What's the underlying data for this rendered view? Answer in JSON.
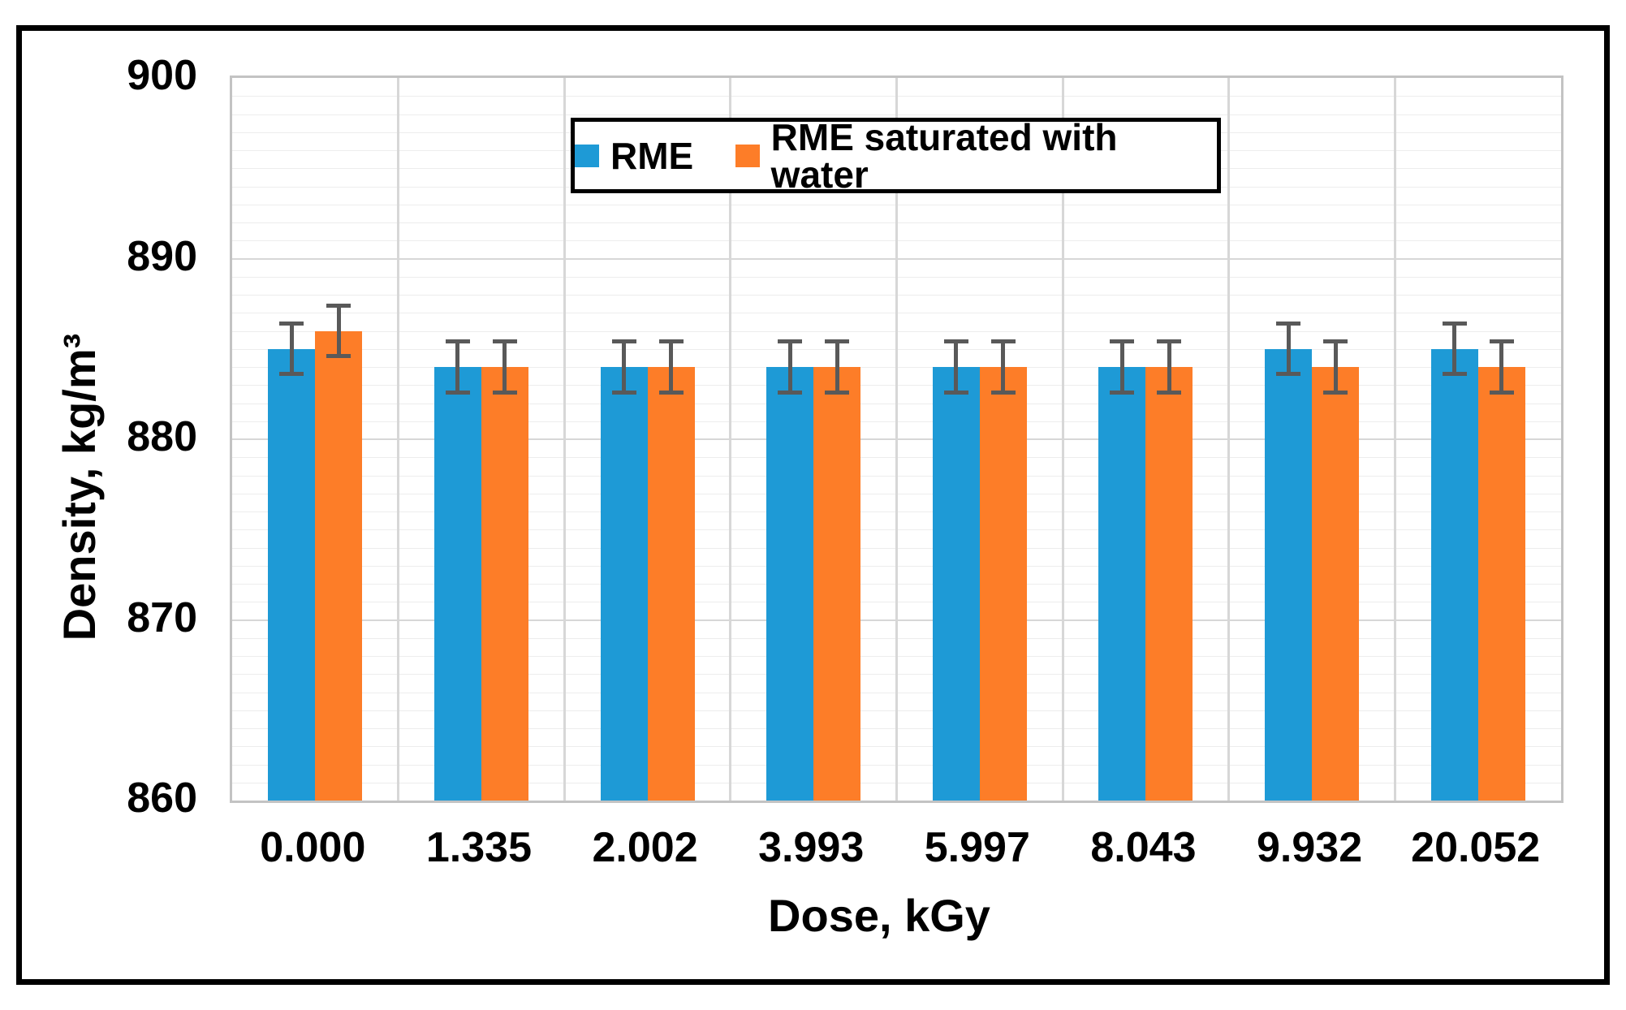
{
  "figure": {
    "background_color": "#ffffff",
    "outer_border_color": "#000000"
  },
  "chart_data": {
    "type": "bar",
    "title": "",
    "xlabel": "Dose, kGy",
    "ylabel": "Density, kg/m³",
    "categories": [
      "0.000",
      "1.335",
      "2.002",
      "3.993",
      "5.997",
      "8.043",
      "9.932",
      "20.052"
    ],
    "series": [
      {
        "name": "RME",
        "color": "#1e9ad6",
        "values": [
          885,
          884,
          884,
          884,
          884,
          884,
          885,
          885
        ],
        "errors": [
          1.4,
          1.4,
          1.4,
          1.4,
          1.4,
          1.4,
          1.4,
          1.4
        ]
      },
      {
        "name": "RME saturated with water",
        "color": "#fd7d28",
        "values": [
          886,
          884,
          884,
          884,
          884,
          884,
          884,
          884
        ],
        "errors": [
          1.4,
          1.4,
          1.4,
          1.4,
          1.4,
          1.4,
          1.4,
          1.4
        ]
      }
    ],
    "ylim": [
      860,
      900
    ],
    "y_major_step": 10,
    "y_minor_step": 1,
    "y_tick_labels": [
      "860",
      "870",
      "880",
      "890",
      "900"
    ],
    "grid": {
      "horizontal_major": true,
      "horizontal_minor": true,
      "vertical_category_separators": true
    },
    "legend_position": "top-center",
    "error_bar_color": "#595959",
    "gridline_minor_color": "#ededed",
    "gridline_major_color": "#d7d7d7",
    "axis_line_color": "#c3c3c3",
    "tick_label_color": "#000000"
  }
}
